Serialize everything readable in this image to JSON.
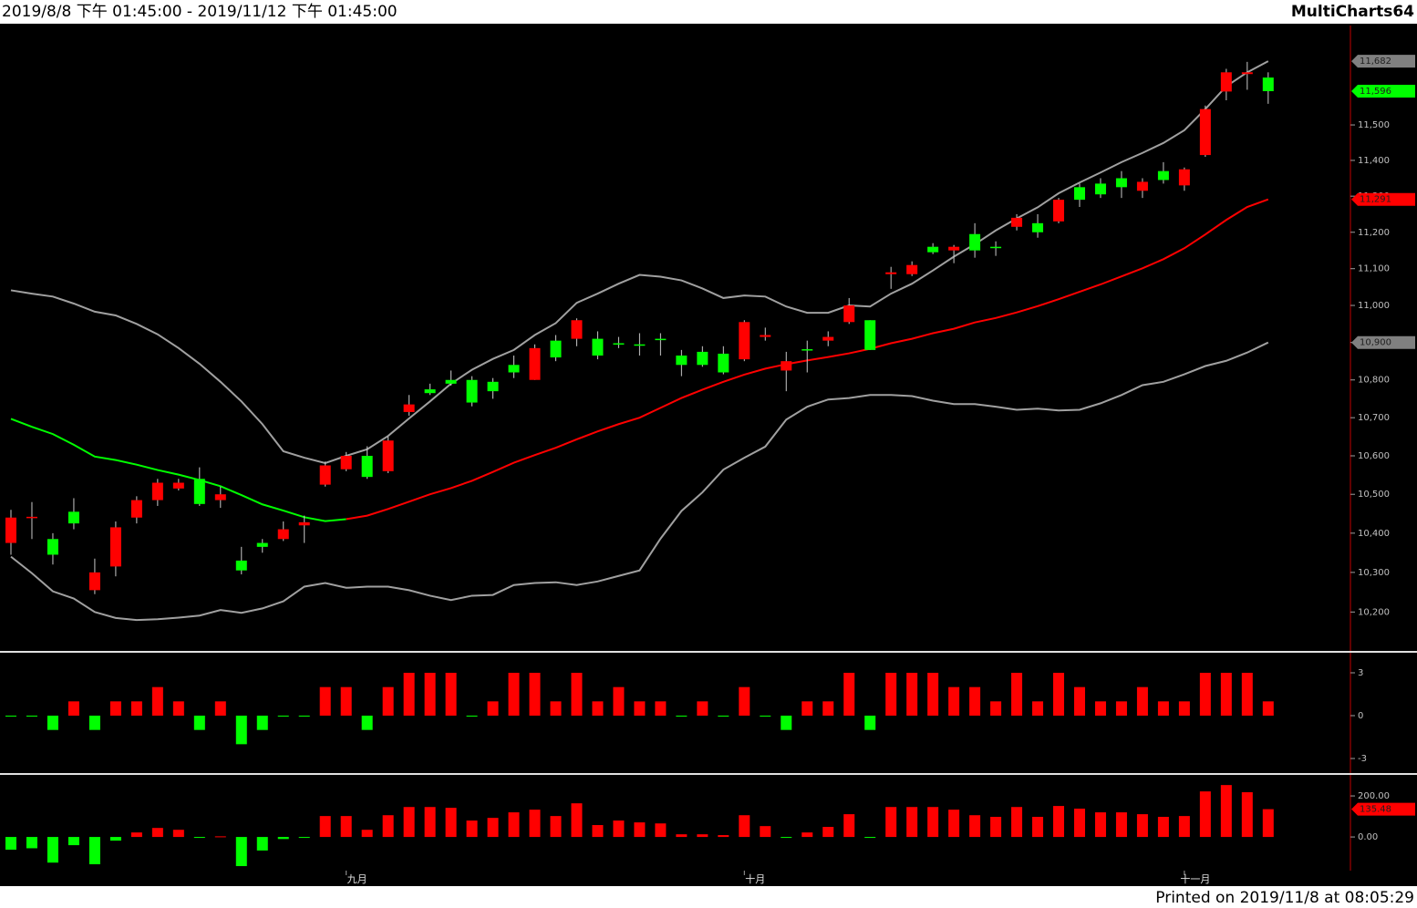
{
  "header": {
    "title": "2019/8/8 下午 01:45:00 - 2019/11/12 下午 01:45:00",
    "brand": "MultiCharts64"
  },
  "footer": {
    "printed": "Printed on 2019/11/8 at 08:05:29"
  },
  "chart_data": [
    {
      "type": "candlestick",
      "log": true,
      "up_color": "#ff0000",
      "down_color": "#00ff00",
      "wick_color": "#c8c8c8",
      "categories": [
        null,
        null,
        null,
        null,
        null,
        null,
        null,
        null,
        null,
        null,
        null,
        null,
        null,
        null,
        null,
        null,
        "九月",
        null,
        null,
        null,
        null,
        null,
        null,
        null,
        null,
        null,
        null,
        null,
        null,
        null,
        null,
        null,
        null,
        null,
        null,
        "十月",
        null,
        null,
        null,
        null,
        null,
        null,
        null,
        null,
        null,
        null,
        null,
        null,
        null,
        null,
        null,
        null,
        null,
        null,
        null,
        null,
        "十一月",
        null,
        null,
        null,
        null
      ],
      "open": [
        10375,
        10440,
        10385,
        10455,
        10255,
        10315,
        10440,
        10485,
        10515,
        10540,
        10485,
        10330,
        10375,
        10385,
        10420,
        10525,
        10565,
        10600,
        10560,
        10715,
        10775,
        10800,
        10800,
        10795,
        10840,
        10800,
        10905,
        10910,
        10910,
        10898,
        10895,
        10910,
        10865,
        10875,
        10870,
        10855,
        10915,
        10825,
        10882,
        10905,
        10955,
        10960,
        11085,
        11085,
        11160,
        11150,
        11195,
        11160,
        11215,
        11225,
        11230,
        11325,
        11335,
        11350,
        11315,
        11370,
        11330,
        11415,
        11595,
        11645,
        11635
      ],
      "high": [
        10460,
        10480,
        10400,
        10490,
        10335,
        10430,
        10495,
        10540,
        10540,
        10570,
        10520,
        10365,
        10385,
        10430,
        10445,
        10585,
        10610,
        10625,
        10650,
        10760,
        10790,
        10825,
        10810,
        10805,
        10865,
        10895,
        10920,
        10965,
        10930,
        10915,
        10925,
        10925,
        10880,
        10890,
        10890,
        10960,
        10940,
        10875,
        10905,
        10930,
        11020,
        10960,
        11105,
        11120,
        11170,
        11165,
        11225,
        11175,
        11250,
        11250,
        11295,
        11335,
        11350,
        11370,
        11350,
        11395,
        11380,
        11555,
        11660,
        11680,
        11650
      ],
      "low": [
        10345,
        10385,
        10320,
        10410,
        10245,
        10290,
        10425,
        10470,
        10510,
        10470,
        10465,
        10295,
        10350,
        10380,
        10375,
        10520,
        10560,
        10540,
        10555,
        10705,
        10760,
        10785,
        10730,
        10750,
        10805,
        10800,
        10850,
        10890,
        10855,
        10885,
        10865,
        10865,
        10810,
        10835,
        10815,
        10850,
        10905,
        10770,
        10820,
        10890,
        10950,
        10880,
        11045,
        11080,
        11140,
        11115,
        11130,
        11135,
        11205,
        11185,
        11225,
        11270,
        11295,
        11295,
        11295,
        11335,
        11315,
        11410,
        11570,
        11600,
        11560
      ],
      "close": [
        10440,
        10442,
        10345,
        10425,
        10300,
        10415,
        10485,
        10530,
        10530,
        10475,
        10500,
        10305,
        10365,
        10410,
        10428,
        10575,
        10600,
        10545,
        10640,
        10735,
        10765,
        10790,
        10740,
        10770,
        10820,
        10885,
        10860,
        10960,
        10865,
        10896,
        10893,
        10907,
        10840,
        10840,
        10820,
        10955,
        10920,
        10850,
        10880,
        10915,
        11000,
        10880,
        11090,
        11110,
        11145,
        11160,
        11150,
        11158,
        11240,
        11200,
        11290,
        11290,
        11305,
        11325,
        11340,
        11345,
        11375,
        11545,
        11650,
        11650,
        11596
      ],
      "series": [
        {
          "color": "#a0a0a0",
          "values": [
            11041,
            11032,
            11024,
            11005,
            10983,
            10973,
            10950,
            10922,
            10885,
            10843,
            10795,
            10743,
            10683,
            10612,
            10595,
            10581,
            10600,
            10617,
            10652,
            10698,
            10743,
            10790,
            10827,
            10856,
            10880,
            10920,
            10952,
            11007,
            11032,
            11059,
            11083,
            11078,
            11068,
            11046,
            11020,
            11027,
            11024,
            10997,
            10980,
            10980,
            11000,
            10997,
            11032,
            11059,
            11095,
            11133,
            11167,
            11205,
            11238,
            11269,
            11308,
            11338,
            11366,
            11395,
            11421,
            11449,
            11485,
            11545,
            11610,
            11650,
            11682
          ]
        },
        {
          "color": "#00ff00",
          "values": [
            10697,
            10676,
            10657,
            10629,
            10598,
            10589,
            10577,
            10563,
            10551,
            10537,
            10521,
            10498,
            10474,
            10458,
            10441,
            10431,
            10436,
            null,
            null,
            null,
            null,
            null,
            null,
            null,
            null,
            null,
            null,
            null,
            null,
            null,
            null,
            null,
            null,
            null,
            null,
            null,
            null,
            null,
            null,
            null,
            null,
            null,
            null,
            null,
            null,
            null,
            null,
            null,
            null,
            null,
            null,
            null,
            null,
            null,
            null,
            null,
            null,
            null,
            null,
            null,
            null
          ]
        },
        {
          "color": "#ff0000",
          "values": [
            null,
            null,
            null,
            null,
            null,
            null,
            null,
            null,
            null,
            null,
            null,
            null,
            null,
            null,
            null,
            null,
            10436,
            10445,
            10462,
            10481,
            10500,
            10516,
            10535,
            10558,
            10582,
            10602,
            10621,
            10643,
            10664,
            10683,
            10700,
            10726,
            10752,
            10774,
            10795,
            10814,
            10830,
            10842,
            10852,
            10861,
            10871,
            10883,
            10898,
            10910,
            10925,
            10937,
            10954,
            10966,
            10981,
            10998,
            11017,
            11037,
            11057,
            11079,
            11101,
            11126,
            11156,
            11194,
            11234,
            11270,
            11291
          ]
        },
        {
          "color": "#a0a0a0",
          "values": [
            10340,
            10298,
            10252,
            10234,
            10200,
            10185,
            10180,
            10182,
            10186,
            10191,
            10205,
            10198,
            10209,
            10227,
            10264,
            10273,
            10261,
            10264,
            10264,
            10255,
            10241,
            10230,
            10241,
            10243,
            10268,
            10273,
            10275,
            10268,
            10277,
            10291,
            10305,
            10386,
            10457,
            10505,
            10564,
            10595,
            10624,
            10695,
            10729,
            10748,
            10752,
            10760,
            10760,
            10757,
            10745,
            10736,
            10736,
            10729,
            10721,
            10724,
            10719,
            10721,
            10738,
            10760,
            10786,
            10795,
            10815,
            10837,
            10851,
            10873,
            10900
          ]
        }
      ],
      "ylim": [
        10105,
        11785
      ],
      "yticks": [
        {
          "value": 10200,
          "label": "10,200"
        },
        {
          "value": 10300,
          "label": "10,300"
        },
        {
          "value": 10400,
          "label": "10,400"
        },
        {
          "value": 10500,
          "label": "10,500"
        },
        {
          "value": 10600,
          "label": "10,600"
        },
        {
          "value": 10700,
          "label": "10,700"
        },
        {
          "value": 10800,
          "label": "10,800"
        },
        {
          "value": 10900,
          "label": "10,900"
        },
        {
          "value": 11000,
          "label": "11,000"
        },
        {
          "value": 11100,
          "label": "11,100"
        },
        {
          "value": 11200,
          "label": "11,200"
        },
        {
          "value": 11300,
          "label": "11,300"
        },
        {
          "value": 11400,
          "label": "11,400"
        },
        {
          "value": 11500,
          "label": "11,500"
        }
      ],
      "markers": [
        {
          "value": 11682,
          "label": "11,682",
          "color": "#808080"
        },
        {
          "value": 11596,
          "label": "11,596",
          "color": "#00ff00"
        },
        {
          "value": 11291,
          "label": "11,291",
          "color": "#ff0000"
        },
        {
          "value": 10900,
          "label": "10,900",
          "color": "#808080"
        }
      ]
    },
    {
      "type": "bar",
      "pos_color": "#ff0000",
      "neg_color": "#00ff00",
      "values": [
        0,
        0,
        -1,
        1,
        -1,
        1,
        1,
        2,
        1,
        -1,
        1,
        -2,
        -1,
        0,
        0,
        2,
        2,
        -1,
        2,
        3,
        3,
        3,
        0,
        1,
        3,
        3,
        1,
        3,
        1,
        2,
        1,
        1,
        0,
        1,
        0,
        2,
        0,
        -1,
        1,
        1,
        3,
        -1,
        3,
        3,
        3,
        2,
        2,
        1,
        3,
        1,
        3,
        2,
        1,
        1,
        2,
        1,
        1,
        3,
        3,
        3,
        1
      ],
      "ylim": [
        -4.02,
        4.34
      ],
      "yticks": [
        3,
        0,
        -3
      ]
    },
    {
      "type": "bar",
      "pos_color": "#ff0000",
      "neg_color": "#00ff00",
      "values": [
        -62,
        -55,
        -125,
        -40,
        -133,
        -18,
        22,
        44,
        35,
        -3,
        3,
        -142,
        -66,
        -10,
        -2,
        102,
        102,
        35,
        106,
        146,
        146,
        142,
        80,
        93,
        120,
        133,
        102,
        164,
        58,
        80,
        71,
        66,
        13,
        13,
        9,
        106,
        53,
        0,
        22,
        49,
        111,
        0,
        146,
        146,
        146,
        133,
        106,
        98,
        146,
        98,
        151,
        138,
        120,
        120,
        111,
        98,
        102,
        222,
        253,
        218,
        135.48
      ],
      "ylim": [
        -164,
        298
      ],
      "yticks": [
        {
          "value": 200,
          "label": "200.00"
        },
        {
          "value": 0,
          "label": "0.00"
        }
      ],
      "markers": [
        {
          "value": 135.48,
          "label": "135.48",
          "color": "#ff0000"
        }
      ]
    }
  ]
}
